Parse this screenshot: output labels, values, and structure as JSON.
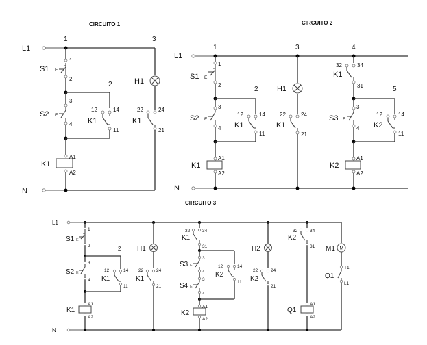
{
  "titles": {
    "c1": "CIRCUITO 1",
    "c2": "CIRCUITO 2",
    "c3": "CIRCUITO 3"
  },
  "rails": {
    "line": "L1",
    "neutral": "N"
  },
  "circuit1": {
    "nodes": {
      "n1": "1",
      "n2": "2",
      "n3": "3"
    },
    "s1": {
      "name": "S1",
      "t_in": "1",
      "t_out": "2",
      "symbol": "E"
    },
    "s2": {
      "name": "S2",
      "t_in": "3",
      "t_out": "4",
      "symbol": "E"
    },
    "k1_no": {
      "name": "K1",
      "t_a": "12",
      "t_b": "14",
      "t_c": "11"
    },
    "k1_coil": {
      "name": "K1",
      "a1": "A1",
      "a2": "A2"
    },
    "h1": {
      "name": "H1"
    },
    "k1_nc": {
      "name": "K1",
      "t_a": "22",
      "t_b": "24",
      "t_c": "21"
    }
  },
  "circuit2": {
    "nodes": {
      "n1": "1",
      "n2": "2",
      "n3": "3",
      "n4": "4",
      "n5": "5"
    },
    "s1": {
      "name": "S1",
      "t_in": "1",
      "t_out": "2",
      "symbol": "E"
    },
    "s2": {
      "name": "S2",
      "t_in": "3",
      "t_out": "4",
      "symbol": "E"
    },
    "k1_no": {
      "name": "K1",
      "t_a": "12",
      "t_b": "14",
      "t_c": "11"
    },
    "k1_coil": {
      "name": "K1",
      "a1": "A1",
      "a2": "A2"
    },
    "h1": {
      "name": "H1"
    },
    "k1_nc": {
      "name": "K1",
      "t_a": "22",
      "t_b": "24",
      "t_c": "21"
    },
    "k1_int": {
      "name": "K1",
      "t_a": "32",
      "t_b": "34",
      "t_c": "31"
    },
    "s3": {
      "name": "S3",
      "t_in": "3",
      "t_out": "4",
      "symbol": "E"
    },
    "k2_no": {
      "name": "K2",
      "t_a": "12",
      "t_b": "14",
      "t_c": "11"
    },
    "k2_coil": {
      "name": "K2",
      "a1": "A1",
      "a2": "A2"
    }
  },
  "circuit3": {
    "s1": {
      "name": "S1",
      "t_in": "1",
      "t_out": "2",
      "symbol": "E"
    },
    "node2": "2",
    "s2": {
      "name": "S2",
      "t_in": "3",
      "t_out": "4",
      "symbol": "E"
    },
    "k1_no": {
      "name": "K1",
      "t_a": "12",
      "t_b": "14",
      "t_c": "11"
    },
    "k1_coil": {
      "name": "K1",
      "a1": "A1",
      "a2": "A2"
    },
    "h1": {
      "name": "H1"
    },
    "k1_nc": {
      "name": "K1",
      "t_a": "22",
      "t_b": "24",
      "t_c": "21"
    },
    "k1_int": {
      "name": "K1",
      "t_a": "32",
      "t_b": "34",
      "t_c": "31"
    },
    "s3": {
      "name": "S3",
      "t_in": "3",
      "t_out": "4",
      "symbol": "E"
    },
    "s4": {
      "name": "S4",
      "t_in": "3",
      "t_out": "4",
      "symbol": "E"
    },
    "k2_no": {
      "name": "K2",
      "t_a": "12",
      "t_b": "14",
      "t_c": "11"
    },
    "k2_coil": {
      "name": "K2",
      "a1": "A1",
      "a2": "A2"
    },
    "h2": {
      "name": "H2"
    },
    "k2_nc": {
      "name": "K2",
      "t_a": "22",
      "t_b": "24",
      "t_c": "21"
    },
    "k2_int": {
      "name": "K2",
      "t_a": "32",
      "t_b": "34",
      "t_c": "31"
    },
    "q1_coil": {
      "name": "Q1",
      "a1": "A1",
      "a2": "A2"
    },
    "m1": {
      "name": "M1",
      "symbol": "M"
    },
    "q1_contact": {
      "name": "Q1",
      "t_a": "T1",
      "t_b": "L1"
    }
  }
}
